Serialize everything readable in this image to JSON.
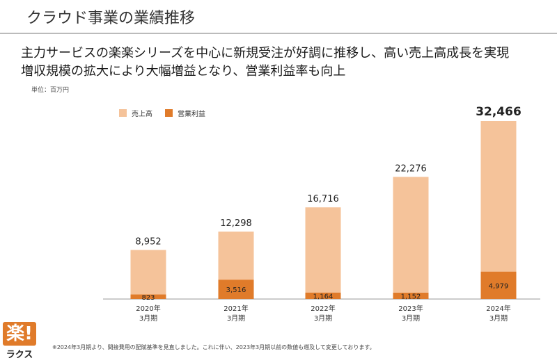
{
  "header": {
    "title": "クラウド事業の業績推移",
    "headline_line1": "主力サービスの楽楽シリーズを中心に新規受注が好調に推移し、高い売上高成長を実現",
    "headline_line2": "増収規模の拡大により大幅増益となり、営業利益率も向上"
  },
  "unit_label": "単位：百万円",
  "legend": {
    "sales": "売上高",
    "profit": "営業利益"
  },
  "colors": {
    "sales": "#f5c39a",
    "profit": "#e07b2a",
    "axis": "#999999",
    "brand": "#e07b2a"
  },
  "chart_data": {
    "type": "bar",
    "categories": [
      "2020年\n3月期",
      "2021年\n3月期",
      "2022年\n3月期",
      "2023年\n3月期",
      "2024年\n3月期"
    ],
    "series": [
      {
        "name": "売上高",
        "values": [
          8952,
          12298,
          16716,
          22276,
          32466
        ]
      },
      {
        "name": "営業利益",
        "values": [
          823,
          3516,
          1164,
          1152,
          4979
        ]
      }
    ],
    "sales_labels": [
      "8,952",
      "12,298",
      "16,716",
      "22,276",
      "32,466"
    ],
    "profit_labels": [
      "823",
      "3,516",
      "1,164",
      "1,152",
      "4,979"
    ],
    "ylim": [
      0,
      32466
    ],
    "legend_position": "top-left",
    "grid": false
  },
  "footnote": "※2024年3月期より、間接費用の配賦基準を見直しました。これに伴い、2023年3月期以前の数値も遡及して変更しております。",
  "logo": {
    "mark": "楽!",
    "name": "ラクス"
  }
}
